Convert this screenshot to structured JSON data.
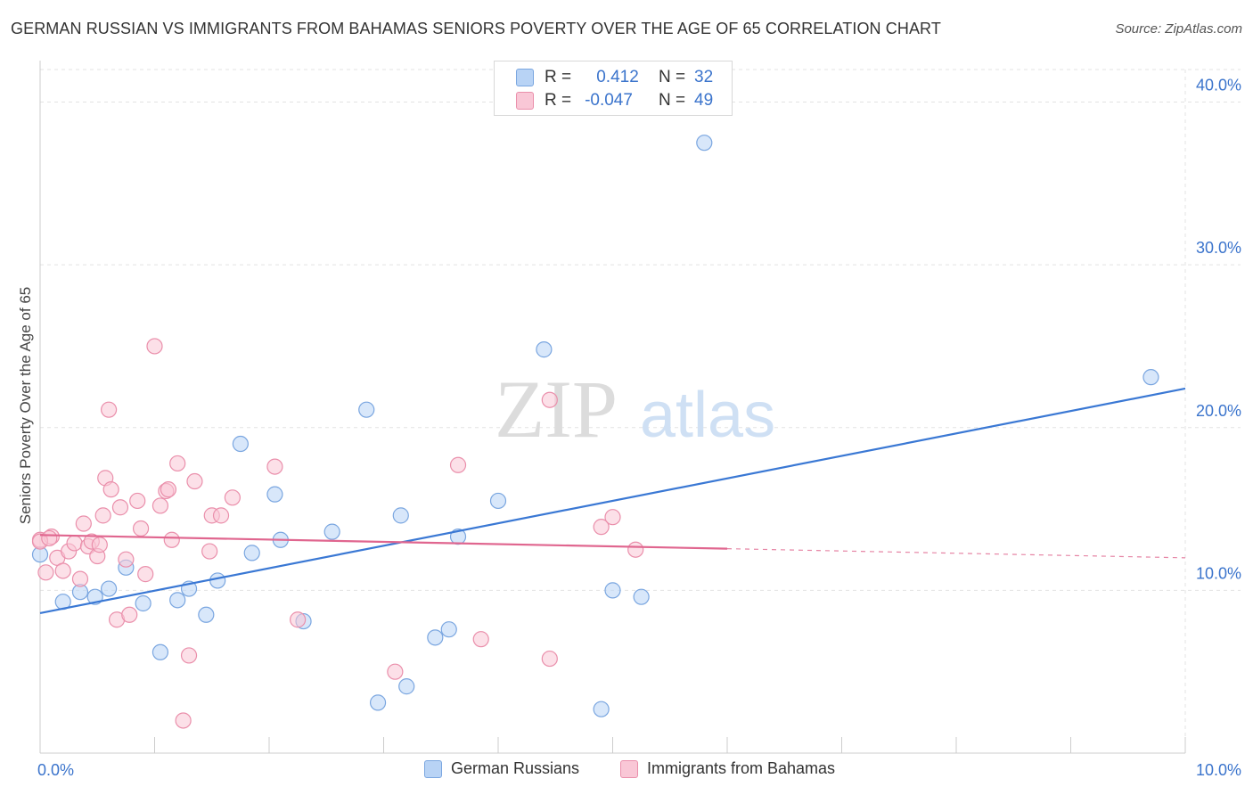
{
  "title": "GERMAN RUSSIAN VS IMMIGRANTS FROM BAHAMAS SENIORS POVERTY OVER THE AGE OF 65 CORRELATION CHART",
  "source": "Source: ZipAtlas.com",
  "watermark": {
    "zip": "ZIP",
    "atlas": "atlas"
  },
  "legend_stats": [
    {
      "r_label": "R =",
      "r_value": "0.412",
      "n_label": "N =",
      "n_value": "32",
      "color": "#b8d3f5",
      "border": "#7aa6e0"
    },
    {
      "r_label": "R =",
      "r_value": "-0.047",
      "n_label": "N =",
      "n_value": "49",
      "color": "#f9c7d6",
      "border": "#ea8fab"
    }
  ],
  "chart_data": {
    "type": "scatter",
    "title": "GERMAN RUSSIAN VS IMMIGRANTS FROM BAHAMAS SENIORS POVERTY OVER THE AGE OF 65 CORRELATION CHART",
    "xlabel": "",
    "ylabel": "Seniors Poverty Over the Age of 65",
    "xlim": [
      0,
      10
    ],
    "ylim": [
      0,
      42
    ],
    "x_tick_labels": [
      "0.0%",
      "10.0%"
    ],
    "y_ticks": [
      10,
      20,
      30,
      40
    ],
    "y_tick_labels": [
      "10.0%",
      "20.0%",
      "30.0%",
      "40.0%"
    ],
    "series": [
      {
        "name": "German Russians",
        "color": "#b8d3f5",
        "stroke": "#7aa6e0",
        "line_color": "#3a78d4",
        "trend": {
          "x0": 0.0,
          "y0": 8.6,
          "x1": 10.0,
          "y1": 22.4,
          "dashed_from": null
        },
        "points": [
          [
            0.0,
            12.2
          ],
          [
            0.2,
            9.3
          ],
          [
            0.35,
            9.9
          ],
          [
            0.48,
            9.6
          ],
          [
            0.6,
            10.1
          ],
          [
            0.75,
            11.4
          ],
          [
            0.9,
            9.2
          ],
          [
            1.05,
            6.2
          ],
          [
            1.2,
            9.4
          ],
          [
            1.3,
            10.1
          ],
          [
            1.45,
            8.5
          ],
          [
            1.55,
            10.6
          ],
          [
            1.75,
            19.0
          ],
          [
            1.85,
            12.3
          ],
          [
            2.05,
            15.9
          ],
          [
            2.1,
            13.1
          ],
          [
            2.3,
            8.1
          ],
          [
            2.55,
            13.6
          ],
          [
            2.85,
            21.1
          ],
          [
            2.95,
            3.1
          ],
          [
            3.15,
            14.6
          ],
          [
            3.2,
            4.1
          ],
          [
            3.45,
            7.1
          ],
          [
            3.57,
            7.6
          ],
          [
            3.65,
            13.3
          ],
          [
            4.0,
            15.5
          ],
          [
            4.4,
            24.8
          ],
          [
            4.9,
            2.7
          ],
          [
            5.0,
            10.0
          ],
          [
            5.25,
            9.6
          ],
          [
            5.8,
            37.5
          ],
          [
            9.7,
            23.1
          ]
        ]
      },
      {
        "name": "Immigrants from Bahamas",
        "color": "#f9c7d6",
        "stroke": "#ea8fab",
        "line_color": "#e0668f",
        "trend": {
          "x0": 0.0,
          "y0": 13.4,
          "x1": 10.0,
          "y1": 12.0,
          "dashed_from": 6.0
        },
        "points": [
          [
            0.0,
            13.1
          ],
          [
            0.05,
            11.1
          ],
          [
            0.1,
            13.3
          ],
          [
            0.15,
            12.0
          ],
          [
            0.2,
            11.2
          ],
          [
            0.25,
            12.4
          ],
          [
            0.3,
            12.9
          ],
          [
            0.35,
            10.7
          ],
          [
            0.38,
            14.1
          ],
          [
            0.42,
            12.7
          ],
          [
            0.45,
            13.0
          ],
          [
            0.5,
            12.1
          ],
          [
            0.52,
            12.8
          ],
          [
            0.55,
            14.6
          ],
          [
            0.57,
            16.9
          ],
          [
            0.6,
            21.1
          ],
          [
            0.62,
            16.2
          ],
          [
            0.67,
            8.2
          ],
          [
            0.7,
            15.1
          ],
          [
            0.75,
            11.9
          ],
          [
            0.78,
            8.5
          ],
          [
            0.85,
            15.5
          ],
          [
            0.88,
            13.8
          ],
          [
            0.92,
            11.0
          ],
          [
            1.0,
            25.0
          ],
          [
            1.05,
            15.2
          ],
          [
            1.1,
            16.1
          ],
          [
            1.12,
            16.2
          ],
          [
            1.15,
            13.1
          ],
          [
            1.2,
            17.8
          ],
          [
            1.25,
            2.0
          ],
          [
            1.3,
            6.0
          ],
          [
            1.35,
            16.7
          ],
          [
            1.48,
            12.4
          ],
          [
            1.5,
            14.6
          ],
          [
            1.58,
            14.6
          ],
          [
            1.68,
            15.7
          ],
          [
            2.05,
            17.6
          ],
          [
            2.25,
            8.2
          ],
          [
            3.1,
            5.0
          ],
          [
            3.65,
            17.7
          ],
          [
            3.85,
            7.0
          ],
          [
            4.45,
            5.8
          ],
          [
            4.45,
            21.7
          ],
          [
            4.9,
            13.9
          ],
          [
            5.0,
            14.5
          ],
          [
            5.2,
            12.5
          ],
          [
            0.0,
            13.0
          ],
          [
            0.08,
            13.2
          ]
        ]
      }
    ]
  }
}
